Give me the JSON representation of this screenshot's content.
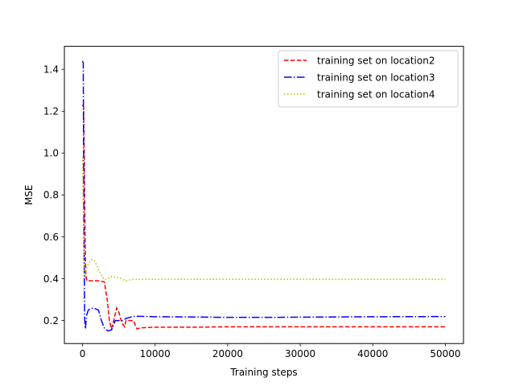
{
  "chart_data": {
    "type": "line",
    "title": "",
    "xlabel": "Training steps",
    "ylabel": "MSE",
    "xlim": [
      -2500,
      52500
    ],
    "ylim": [
      0.09,
      1.51
    ],
    "x_ticks": [
      0,
      10000,
      20000,
      30000,
      40000,
      50000
    ],
    "x_tick_labels": [
      "0",
      "10000",
      "20000",
      "30000",
      "40000",
      "50000"
    ],
    "y_ticks": [
      0.2,
      0.4,
      0.6,
      0.8,
      1.0,
      1.2,
      1.4
    ],
    "y_tick_labels": [
      "0.2",
      "0.4",
      "0.6",
      "0.8",
      "1.0",
      "1.2",
      "1.4"
    ],
    "grid": false,
    "legend_position": "top-right",
    "series": [
      {
        "name": "training set on location2",
        "color": "#ff0000",
        "dash": "dashed",
        "x": [
          0,
          150,
          250,
          350,
          450,
          600,
          800,
          1200,
          2000,
          3000,
          3400,
          3700,
          4000,
          4300,
          4700,
          5000,
          5400,
          5800,
          6000,
          6200,
          6500,
          7000,
          7500,
          8000,
          10000,
          15000,
          20000,
          30000,
          40000,
          50000
        ],
        "y": [
          1.23,
          1.22,
          0.95,
          0.6,
          0.42,
          0.39,
          0.39,
          0.39,
          0.39,
          0.385,
          0.3,
          0.2,
          0.16,
          0.2,
          0.26,
          0.24,
          0.19,
          0.17,
          0.2,
          0.2,
          0.2,
          0.2,
          0.16,
          0.165,
          0.168,
          0.168,
          0.17,
          0.17,
          0.17,
          0.17
        ]
      },
      {
        "name": "training set on location3",
        "color": "#0000ff",
        "dash": "dashdot",
        "x": [
          0,
          100,
          200,
          300,
          400,
          500,
          600,
          800,
          1000,
          1500,
          2200,
          2600,
          3000,
          3500,
          4000,
          4500,
          5000,
          5500,
          6000,
          6500,
          7000,
          8000,
          10000,
          15000,
          20000,
          25000,
          30000,
          40000,
          50000
        ],
        "y": [
          1.44,
          1.43,
          0.6,
          0.2,
          0.16,
          0.2,
          0.23,
          0.25,
          0.255,
          0.26,
          0.25,
          0.2,
          0.165,
          0.15,
          0.155,
          0.2,
          0.2,
          0.2,
          0.21,
          0.215,
          0.22,
          0.22,
          0.218,
          0.217,
          0.215,
          0.215,
          0.216,
          0.218,
          0.219
        ]
      },
      {
        "name": "training set on location4",
        "color": "#bfbf00",
        "dash": "dotted",
        "x": [
          0,
          150,
          300,
          500,
          800,
          1200,
          1600,
          2000,
          2500,
          3000,
          3500,
          4000,
          5000,
          6000,
          7000,
          10000,
          20000,
          30000,
          40000,
          50000
        ],
        "y": [
          0.98,
          0.6,
          0.4,
          0.44,
          0.47,
          0.49,
          0.488,
          0.46,
          0.42,
          0.395,
          0.4,
          0.41,
          0.405,
          0.39,
          0.397,
          0.397,
          0.397,
          0.397,
          0.397,
          0.397
        ]
      }
    ]
  }
}
